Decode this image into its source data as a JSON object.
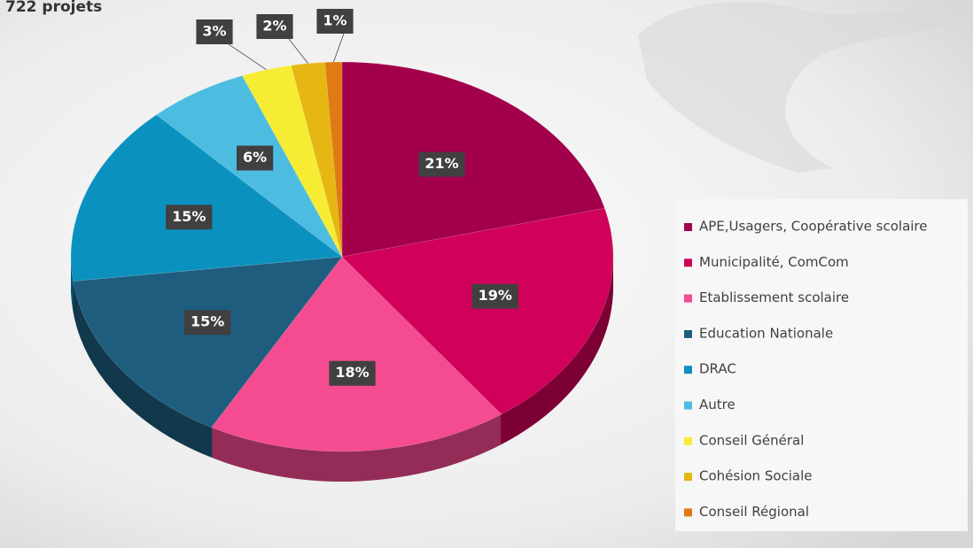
{
  "chart_data": {
    "type": "pie",
    "title": "722 projets",
    "categories": [
      "APE,Usagers, Coopérative scolaire",
      "Municipalité, ComCom",
      "Etablissement scolaire",
      "Education Nationale",
      "DRAC",
      "Autre",
      "Conseil Général",
      "Cohésion Sociale",
      "Conseil Régional"
    ],
    "values": [
      21,
      19,
      18,
      15,
      15,
      6,
      3,
      2,
      1
    ],
    "value_labels": [
      "21%",
      "19%",
      "18%",
      "15%",
      "15%",
      "6%",
      "3%",
      "2%",
      "1%"
    ],
    "colors": [
      "#a3004b",
      "#d10059",
      "#f54b91",
      "#1e5d7e",
      "#0b91c0",
      "#4cbde0",
      "#f7ec34",
      "#e6b612",
      "#e07a12"
    ],
    "legend": "right"
  }
}
